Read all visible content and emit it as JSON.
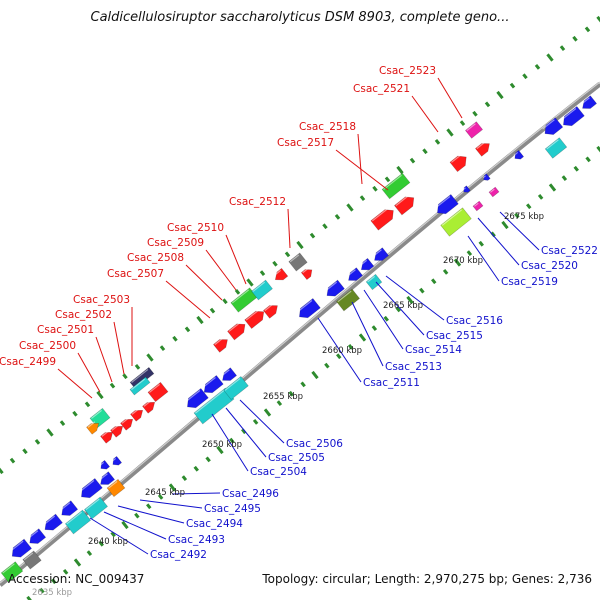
{
  "title": "Caldicellulosiruptor saccharolyticus DSM 8903, complete geno...",
  "footer": {
    "accession": "Accession: NC_009437",
    "topology": "Topology: circular; Length: 2,970,275 bp; Genes: 2,736"
  },
  "colors": {
    "backbone": "#8a8a8a",
    "tick": "#2e8b2e",
    "forward_label": "#dd1111",
    "reverse_label": "#1111cc",
    "kbp_label": "#222222",
    "red": "#ff1a1a",
    "blue": "#1a1aee",
    "cyan": "#22cccc",
    "green": "#33cc33",
    "lime": "#aaee33",
    "olive": "#668822",
    "gray": "#777777",
    "magenta": "#ee22aa",
    "orange": "#ff8800",
    "navy": "#333366",
    "teal": "#22dd99"
  },
  "kbp_labels": [
    "2640 kbp",
    "2645 kbp",
    "2650 kbp",
    "2655 kbp",
    "2660 kbp",
    "2665 kbp",
    "2670 kbp",
    "2675 kbp"
  ],
  "forward_labels": [
    "Csac_2523",
    "Csac_2521",
    "Csac_2518",
    "Csac_2517",
    "Csac_2512",
    "Csac_2510",
    "Csac_2509",
    "Csac_2508",
    "Csac_2507",
    "Csac_2503",
    "Csac_2502",
    "Csac_2501",
    "Csac_2500",
    "Csac_2499"
  ],
  "reverse_labels": [
    "Csac_2522",
    "Csac_2520",
    "Csac_2519",
    "Csac_2516",
    "Csac_2515",
    "Csac_2514",
    "Csac_2513",
    "Csac_2511",
    "Csac_2506",
    "Csac_2505",
    "Csac_2504",
    "Csac_2496",
    "Csac_2495",
    "Csac_2494",
    "Csac_2493",
    "Csac_2492"
  ],
  "partial_label": "2635 kbp"
}
